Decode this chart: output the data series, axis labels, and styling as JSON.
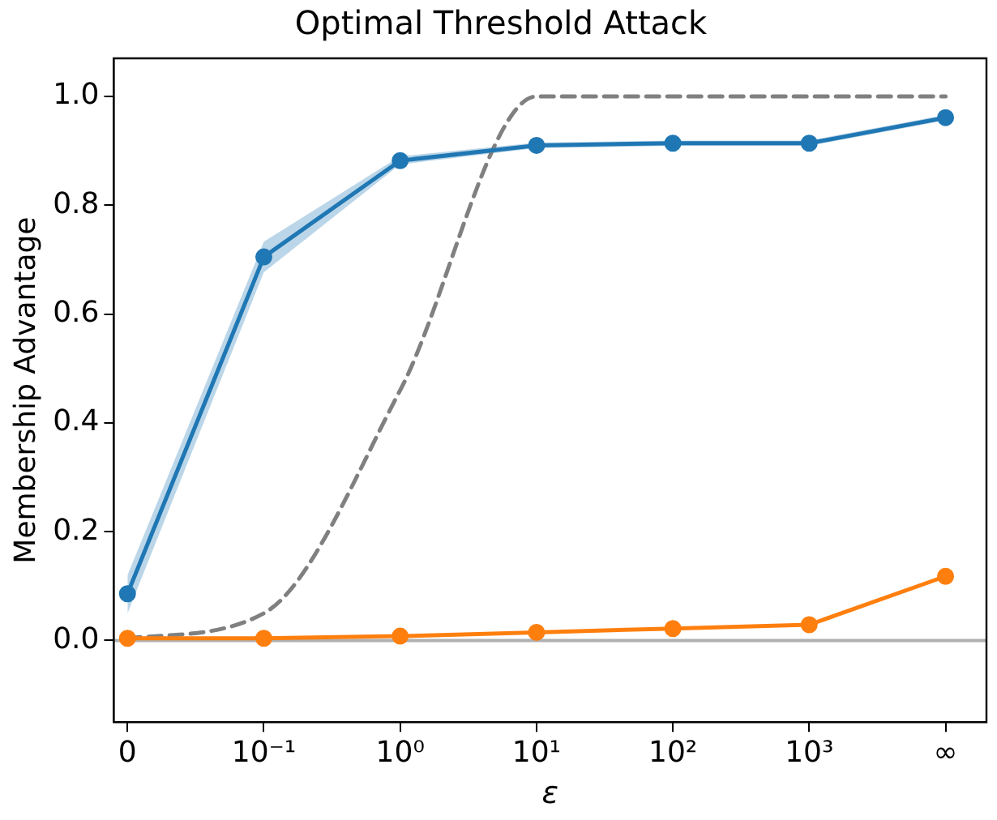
{
  "chart_data": {
    "type": "line",
    "title": "Optimal Threshold Attack",
    "xlabel": "ε",
    "ylabel": "Membership Advantage",
    "categories": [
      "0",
      "10⁻¹",
      "10⁰",
      "10¹",
      "10²",
      "10³",
      "∞"
    ],
    "ylim": [
      -0.15,
      1.07
    ],
    "yticks": [
      {
        "value": 0,
        "label": "0.0"
      },
      {
        "value": 0.2,
        "label": "0.2"
      },
      {
        "value": 0.4,
        "label": "0.4"
      },
      {
        "value": 0.6,
        "label": "0.6"
      },
      {
        "value": 0.8,
        "label": "0.8"
      },
      {
        "value": 1,
        "label": "1.0"
      }
    ],
    "grid": false,
    "legend": false,
    "marker": "circle",
    "line_style": "solid",
    "series": [
      {
        "color": "#1f77b4",
        "values": [
          0.086,
          0.705,
          0.882,
          0.91,
          0.914,
          0.914,
          0.961
        ],
        "lower": [
          0.05,
          0.677,
          0.875,
          0.905,
          0.909,
          0.909,
          0.956
        ],
        "upper": [
          0.12,
          0.733,
          0.89,
          0.915,
          0.919,
          0.919,
          0.966
        ]
      },
      {
        "color": "#ff7f0e",
        "values": [
          0.004,
          0.004,
          0.008,
          0.015,
          0.022,
          0.029,
          0.118
        ]
      },
      {
        "color": "#808080",
        "marker": "none",
        "line_style": "dashed",
        "values": [
          0.004,
          0.05,
          0.46,
          1.0,
          1.0,
          1.0,
          1.0
        ]
      }
    ],
    "ref_lines": [
      {
        "axis": "y",
        "value": 0,
        "color": "#b0b0b0"
      }
    ]
  }
}
